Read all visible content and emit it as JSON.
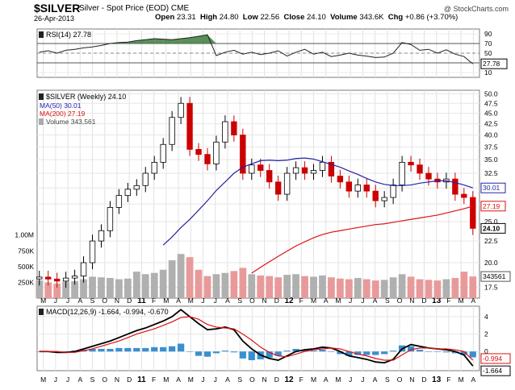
{
  "header": {
    "ticker": "$SILVER",
    "name": "Silver - Spot Price (EOD)",
    "exchange": "CME",
    "date": "26-Apr-2013",
    "open_label": "Open",
    "open": "23.31",
    "high_label": "High",
    "high": "24.80",
    "low_label": "Low",
    "low": "22.56",
    "close_label": "Close",
    "close": "24.10",
    "volume_label": "Volume",
    "volume": "343.6K",
    "chg_label": "Chg",
    "chg": "+0.86 (+3.70%)",
    "copyright": "@ StockCharts.com"
  },
  "colors": {
    "candle": "#000000",
    "down": "#cc0000",
    "ma50": "#2222aa",
    "ma200": "#dd1111",
    "volume_up": "#b0b0b0",
    "volume_down": "#e89a9a",
    "rsi_fill": "#3d7a3d",
    "macd_hist": "#3a8fd0",
    "signal": "#dd1111"
  },
  "chart_data": [
    {
      "type": "line",
      "panel": "rsi",
      "title": "RSI(14) 27.78",
      "last_label": "27.78",
      "ylim": [
        0,
        100
      ],
      "yticks": [
        10,
        30,
        50,
        70,
        90
      ],
      "ytick_labels": [
        "10",
        "30",
        "50",
        "70",
        "90"
      ],
      "reference_lines": [
        30,
        70
      ],
      "x": [
        0,
        2,
        4,
        6,
        8,
        10,
        12,
        14,
        16,
        18,
        20,
        22,
        24,
        26,
        28,
        30,
        32,
        34,
        36,
        38,
        40,
        42,
        44,
        46,
        48,
        50,
        52,
        54,
        56,
        58,
        60,
        62,
        64,
        66,
        68,
        70,
        72,
        74,
        76,
        78,
        80,
        82,
        84,
        86,
        88,
        90,
        92,
        94,
        96,
        98
      ],
      "values": [
        52,
        55,
        50,
        56,
        58,
        61,
        63,
        66,
        70,
        72,
        73,
        76,
        78,
        80,
        79,
        78,
        80,
        82,
        85,
        88,
        45,
        52,
        56,
        48,
        52,
        47,
        50,
        55,
        44,
        52,
        58,
        48,
        52,
        43,
        46,
        50,
        46,
        44,
        41,
        42,
        50,
        72,
        68,
        56,
        58,
        50,
        57,
        48,
        43,
        28
      ]
    },
    {
      "type": "candlestick",
      "panel": "price",
      "title": "$SILVER (Weekly) 24.10",
      "scale": "log",
      "ylim": [
        16.5,
        51
      ],
      "yticks": [
        17.5,
        20,
        22.5,
        25,
        27.5,
        30,
        32.5,
        35,
        37.5,
        40,
        42.5,
        45,
        47.5,
        50
      ],
      "ytick_labels": [
        "17.5",
        "20.0",
        "22.5",
        "25.0",
        "27.5",
        "30.0",
        "32.5",
        "35.0",
        "37.5",
        "40.0",
        "42.5",
        "45.0",
        "47.5",
        "50.0"
      ],
      "value_labels": [
        "30.01",
        "27.19",
        "24.10"
      ],
      "x_months": [
        "M",
        "J",
        "J",
        "A",
        "S",
        "O",
        "N",
        "D",
        "11",
        "F",
        "M",
        "A",
        "M",
        "J",
        "J",
        "A",
        "S",
        "O",
        "N",
        "D",
        "12",
        "F",
        "M",
        "A",
        "M",
        "J",
        "J",
        "A",
        "S",
        "O",
        "N",
        "D",
        "13",
        "F",
        "M",
        "A"
      ],
      "year_months": [
        "11",
        "12",
        "13"
      ],
      "x": [
        0,
        2,
        4,
        6,
        8,
        10,
        12,
        14,
        16,
        18,
        20,
        22,
        24,
        26,
        28,
        30,
        32,
        34,
        36,
        38,
        40,
        42,
        44,
        46,
        48,
        50,
        52,
        54,
        56,
        58,
        60,
        62,
        64,
        66,
        68,
        70,
        72,
        74,
        76,
        78,
        80,
        82,
        84,
        86,
        88,
        90,
        92,
        94,
        96,
        98
      ],
      "close": [
        18.5,
        18.3,
        18.1,
        18.4,
        18.6,
        20.0,
        22.5,
        23.8,
        27.0,
        28.8,
        29.8,
        30.4,
        32.5,
        34.5,
        38.0,
        44.0,
        47.5,
        37.0,
        36.0,
        34.2,
        38.5,
        43.0,
        40.0,
        32.5,
        34.0,
        33.0,
        31.0,
        29.0,
        32.5,
        33.5,
        32.5,
        33.0,
        34.5,
        32.0,
        31.0,
        29.5,
        30.5,
        29.5,
        28.0,
        28.5,
        30.5,
        34.5,
        34.0,
        32.5,
        31.5,
        31.0,
        31.5,
        29.0,
        28.5,
        24.1
      ],
      "ma": [
        {
          "name": "MA(50) 30.01",
          "values": [
            null,
            null,
            null,
            null,
            null,
            null,
            null,
            null,
            null,
            null,
            null,
            null,
            null,
            null,
            22.0,
            23.0,
            24.2,
            25.3,
            26.6,
            28.0,
            29.6,
            31.0,
            32.5,
            33.6,
            34.2,
            34.8,
            34.9,
            34.8,
            34.9,
            35.2,
            35.3,
            35.1,
            34.6,
            34.1,
            33.6,
            32.9,
            32.3,
            31.6,
            31.0,
            30.6,
            30.4,
            30.4,
            30.5,
            30.8,
            31.0,
            31.2,
            31.2,
            30.9,
            30.5,
            30.01
          ]
        },
        {
          "name": "MA(200) 27.19",
          "values": [
            null,
            null,
            null,
            null,
            null,
            null,
            null,
            null,
            null,
            null,
            null,
            null,
            null,
            null,
            null,
            null,
            null,
            null,
            null,
            null,
            null,
            null,
            null,
            null,
            18.9,
            19.5,
            20.1,
            20.7,
            21.3,
            21.9,
            22.4,
            22.9,
            23.3,
            23.6,
            23.8,
            24.0,
            24.2,
            24.4,
            24.6,
            24.7,
            24.9,
            25.1,
            25.3,
            25.5,
            25.7,
            25.9,
            26.2,
            26.5,
            26.8,
            27.19
          ]
        }
      ]
    },
    {
      "type": "bar",
      "panel": "volume",
      "title": "Volume 343,561",
      "last_label": "343561",
      "ylim": [
        0,
        1150000
      ],
      "yticks": [
        250000,
        500000,
        750000,
        1000000
      ],
      "ytick_labels": [
        "250K",
        "500K",
        "750K",
        "1.00M"
      ],
      "x": [
        0,
        2,
        4,
        6,
        8,
        10,
        12,
        14,
        16,
        18,
        20,
        22,
        24,
        26,
        28,
        30,
        32,
        34,
        36,
        38,
        40,
        42,
        44,
        46,
        48,
        50,
        52,
        54,
        56,
        58,
        60,
        62,
        64,
        66,
        68,
        70,
        72,
        74,
        76,
        78,
        80,
        82,
        84,
        86,
        88,
        90,
        92,
        94,
        96,
        98
      ],
      "values": [
        280000,
        250000,
        230000,
        260000,
        270000,
        300000,
        340000,
        330000,
        320000,
        300000,
        310000,
        420000,
        380000,
        400000,
        450000,
        600000,
        700000,
        650000,
        450000,
        350000,
        380000,
        400000,
        430000,
        480000,
        380000,
        360000,
        350000,
        330000,
        370000,
        380000,
        350000,
        340000,
        360000,
        330000,
        310000,
        300000,
        320000,
        300000,
        280000,
        290000,
        330000,
        380000,
        340000,
        300000,
        290000,
        280000,
        300000,
        320000,
        420000,
        343561
      ]
    },
    {
      "type": "line",
      "panel": "macd",
      "title": "MACD(12,26,9) -1.664, -0.994, -0.670",
      "ylim": [
        -2.2,
        5.2
      ],
      "yticks": [
        0,
        2,
        4
      ],
      "ytick_labels": [
        "0",
        "2",
        "4"
      ],
      "value_labels": [
        "-0.994",
        "-1.664"
      ],
      "x": [
        0,
        2,
        4,
        6,
        8,
        10,
        12,
        14,
        16,
        18,
        20,
        22,
        24,
        26,
        28,
        30,
        32,
        34,
        36,
        38,
        40,
        42,
        44,
        46,
        48,
        50,
        52,
        54,
        56,
        58,
        60,
        62,
        64,
        66,
        68,
        70,
        72,
        74,
        76,
        78,
        80,
        82,
        84,
        86,
        88,
        90,
        92,
        94,
        96,
        98
      ],
      "series": [
        {
          "name": "MACD",
          "values": [
            0.0,
            0.0,
            -0.1,
            -0.1,
            0.0,
            0.3,
            0.6,
            0.9,
            1.2,
            1.6,
            2.0,
            2.4,
            2.7,
            3.1,
            3.5,
            4.0,
            4.8,
            4.0,
            3.2,
            2.5,
            2.6,
            2.8,
            2.5,
            1.2,
            0.3,
            -0.4,
            -0.8,
            -1.0,
            -0.5,
            0.0,
            0.2,
            0.3,
            0.5,
            0.4,
            0.0,
            -0.5,
            -0.7,
            -0.9,
            -1.2,
            -1.3,
            -0.9,
            0.3,
            0.8,
            0.6,
            0.4,
            0.3,
            0.2,
            0.0,
            -0.4,
            -1.664
          ]
        },
        {
          "name": "Signal",
          "values": [
            0.0,
            0.0,
            0.0,
            -0.1,
            -0.1,
            0.1,
            0.3,
            0.6,
            0.9,
            1.2,
            1.6,
            2.0,
            2.3,
            2.6,
            3.0,
            3.4,
            3.9,
            4.0,
            3.7,
            3.1,
            2.8,
            2.7,
            2.6,
            2.0,
            1.3,
            0.5,
            -0.1,
            -0.5,
            -0.6,
            -0.3,
            0.0,
            0.2,
            0.3,
            0.4,
            0.3,
            0.0,
            -0.3,
            -0.5,
            -0.8,
            -1.0,
            -1.0,
            -0.4,
            0.2,
            0.4,
            0.4,
            0.3,
            0.3,
            0.2,
            0.0,
            -0.994
          ]
        }
      ],
      "histogram": [
        0.0,
        0.0,
        -0.1,
        0.0,
        0.1,
        0.2,
        0.3,
        0.3,
        0.3,
        0.4,
        0.4,
        0.4,
        0.4,
        0.5,
        0.5,
        0.6,
        0.9,
        0.0,
        -0.5,
        -0.6,
        -0.2,
        0.1,
        -0.1,
        -0.8,
        -1.0,
        -0.9,
        -0.7,
        -0.5,
        0.1,
        0.3,
        0.2,
        0.1,
        0.2,
        0.0,
        -0.3,
        -0.5,
        -0.4,
        -0.4,
        -0.4,
        -0.3,
        0.1,
        0.7,
        0.6,
        0.2,
        0.0,
        0.0,
        -0.1,
        -0.2,
        -0.4,
        -0.67
      ],
      "x_months": [
        "M",
        "J",
        "J",
        "A",
        "S",
        "O",
        "N",
        "D",
        "11",
        "F",
        "M",
        "A",
        "M",
        "J",
        "J",
        "A",
        "S",
        "O",
        "N",
        "D",
        "12",
        "F",
        "M",
        "A",
        "M",
        "J",
        "J",
        "A",
        "S",
        "O",
        "N",
        "D",
        "13",
        "F",
        "M",
        "A"
      ],
      "year_months": [
        "11",
        "12",
        "13"
      ]
    }
  ]
}
